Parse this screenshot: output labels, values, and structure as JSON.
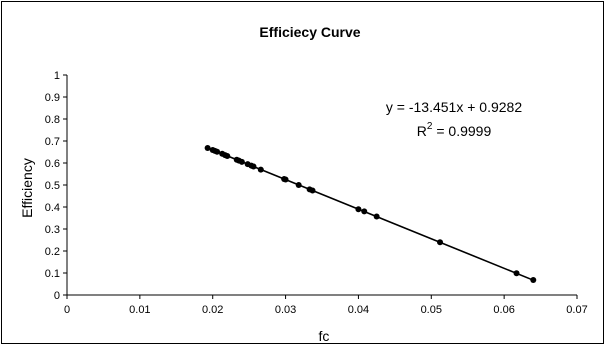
{
  "chart_data": {
    "type": "scatter",
    "title": "Efficiecy Curve",
    "xlabel": "fc",
    "ylabel": "Efficiency",
    "xlim": [
      0,
      0.07
    ],
    "ylim": [
      0,
      1
    ],
    "x_ticks": [
      "0",
      "0.01",
      "0.02",
      "0.03",
      "0.04",
      "0.05",
      "0.06",
      "0.07"
    ],
    "y_ticks": [
      "0",
      "0.1",
      "0.2",
      "0.3",
      "0.4",
      "0.5",
      "0.6",
      "0.7",
      "0.8",
      "0.9",
      "1"
    ],
    "grid": false,
    "legend": "none",
    "series": [
      {
        "marker_color": "#000000",
        "points": [
          {
            "x": 0.0193,
            "y": 0.668
          },
          {
            "x": 0.02,
            "y": 0.659
          },
          {
            "x": 0.0203,
            "y": 0.655
          },
          {
            "x": 0.0206,
            "y": 0.651
          },
          {
            "x": 0.0213,
            "y": 0.642
          },
          {
            "x": 0.0217,
            "y": 0.636
          },
          {
            "x": 0.022,
            "y": 0.632
          },
          {
            "x": 0.0233,
            "y": 0.615
          },
          {
            "x": 0.0236,
            "y": 0.611
          },
          {
            "x": 0.024,
            "y": 0.605
          },
          {
            "x": 0.0248,
            "y": 0.595
          },
          {
            "x": 0.0253,
            "y": 0.588
          },
          {
            "x": 0.0256,
            "y": 0.584
          },
          {
            "x": 0.0266,
            "y": 0.57
          },
          {
            "x": 0.0298,
            "y": 0.527
          },
          {
            "x": 0.03,
            "y": 0.525
          },
          {
            "x": 0.0318,
            "y": 0.5
          },
          {
            "x": 0.0333,
            "y": 0.48
          },
          {
            "x": 0.0337,
            "y": 0.475
          },
          {
            "x": 0.04,
            "y": 0.39
          },
          {
            "x": 0.0408,
            "y": 0.38
          },
          {
            "x": 0.0425,
            "y": 0.357
          },
          {
            "x": 0.0512,
            "y": 0.24
          },
          {
            "x": 0.0617,
            "y": 0.099
          },
          {
            "x": 0.064,
            "y": 0.068
          }
        ]
      }
    ],
    "trendline": {
      "slope": -13.451,
      "intercept": 0.9282,
      "x_range": [
        0.0193,
        0.064
      ],
      "color": "#000000"
    },
    "annotations": {
      "equation": "y = -13.451x + 0.9282",
      "r2_prefix": "R",
      "r2_sup": "2",
      "r2_value": " = 0.9999"
    }
  }
}
